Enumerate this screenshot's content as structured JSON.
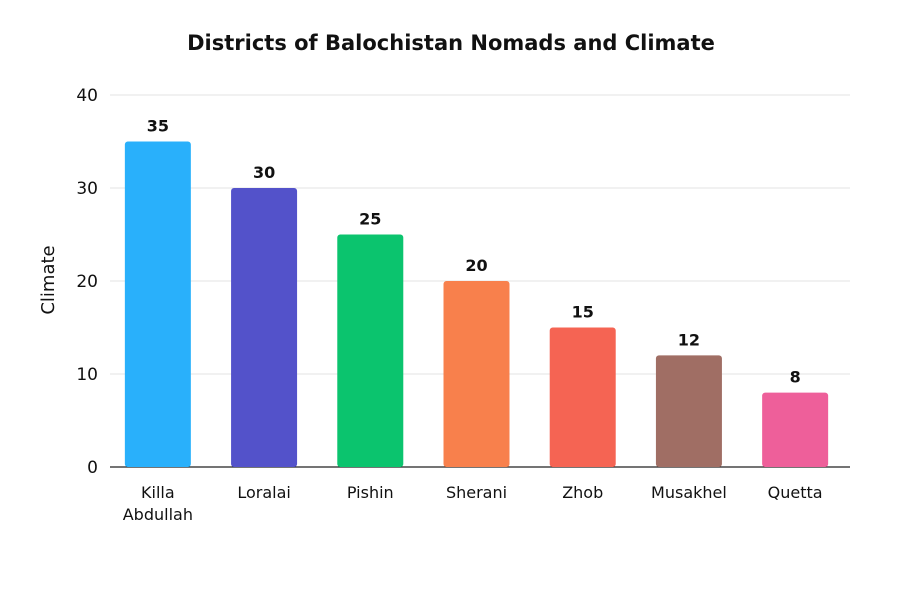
{
  "chart_data": {
    "type": "bar",
    "title": "Districts of Balochistan Nomads and Climate",
    "xlabel": "",
    "ylabel": "Climate",
    "ylim": [
      0,
      40
    ],
    "yticks": [
      0,
      10,
      20,
      30,
      40
    ],
    "grid": true,
    "categories": [
      [
        "Killa",
        "Abdullah"
      ],
      [
        "Loralai"
      ],
      [
        "Pishin"
      ],
      [
        "Sherani"
      ],
      [
        "Zhob"
      ],
      [
        "Musakhel"
      ],
      [
        "Quetta"
      ]
    ],
    "values": [
      35,
      30,
      25,
      20,
      15,
      12,
      8
    ],
    "colors": [
      "#29B0FB",
      "#5352CA",
      "#0BC46E",
      "#F8804C",
      "#F56453",
      "#A06E64",
      "#EE5F9A"
    ]
  }
}
